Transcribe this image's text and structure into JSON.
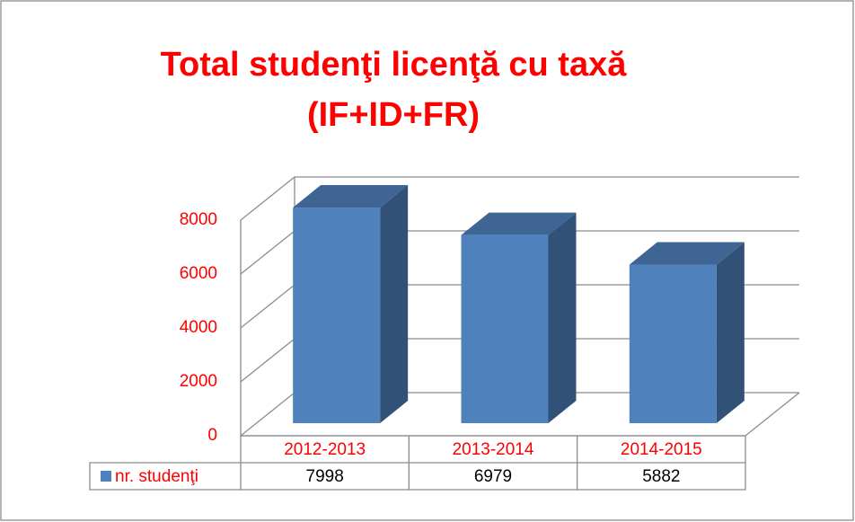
{
  "chart_data": {
    "type": "bar3d",
    "title": [
      "Total studenţi licenţă cu taxă",
      "(IF+ID+FR)"
    ],
    "categories": [
      "2012-2013",
      "2013-2014",
      "2014-2015"
    ],
    "series": [
      {
        "name": "nr. studenţi",
        "color": "#4f81bd",
        "values": [
          7998,
          6979,
          5882
        ]
      }
    ],
    "ylim": [
      0,
      8000
    ],
    "yticks": [
      0,
      2000,
      4000,
      6000,
      8000
    ],
    "grid": true
  }
}
